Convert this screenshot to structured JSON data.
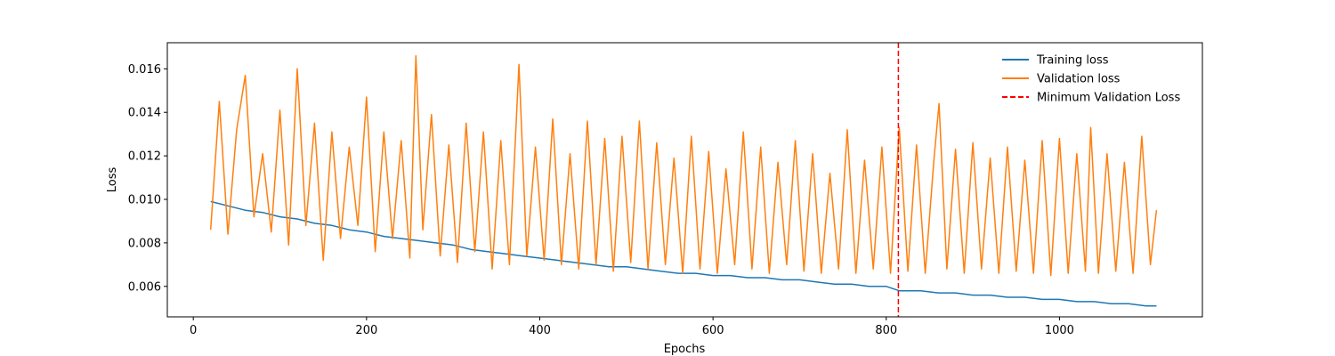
{
  "chart_data": {
    "type": "line",
    "title": "",
    "xlabel": "Epochs",
    "ylabel": "Loss",
    "xlim": [
      -30,
      1165
    ],
    "ylim": [
      0.0046,
      0.0172
    ],
    "x_ticks": [
      0,
      200,
      400,
      600,
      800,
      1000
    ],
    "y_ticks": [
      0.006,
      0.008,
      0.01,
      0.012,
      0.014,
      0.016
    ],
    "x_tick_labels": [
      "0",
      "200",
      "400",
      "600",
      "800",
      "1000"
    ],
    "y_tick_labels": [
      "0.006",
      "0.008",
      "0.010",
      "0.012",
      "0.014",
      "0.016"
    ],
    "grid": false,
    "legend_position": "top-right",
    "series": [
      {
        "name": "Training loss",
        "color": "#1f77b4",
        "x": [
          20,
          40,
          60,
          80,
          100,
          120,
          140,
          160,
          180,
          200,
          220,
          240,
          260,
          280,
          300,
          320,
          340,
          360,
          380,
          400,
          420,
          440,
          460,
          480,
          500,
          520,
          540,
          560,
          580,
          600,
          620,
          640,
          660,
          680,
          700,
          720,
          740,
          760,
          780,
          800,
          815,
          840,
          860,
          880,
          900,
          920,
          940,
          960,
          980,
          1000,
          1020,
          1040,
          1060,
          1080,
          1100,
          1112
        ],
        "y": [
          0.0099,
          0.0097,
          0.0095,
          0.0094,
          0.0092,
          0.0091,
          0.0089,
          0.0088,
          0.0086,
          0.0085,
          0.0083,
          0.0082,
          0.0081,
          0.008,
          0.0079,
          0.0077,
          0.0076,
          0.0075,
          0.0074,
          0.0073,
          0.0072,
          0.0071,
          0.007,
          0.0069,
          0.0069,
          0.0068,
          0.0067,
          0.0066,
          0.0066,
          0.0065,
          0.0065,
          0.0064,
          0.0064,
          0.0063,
          0.0063,
          0.0062,
          0.0061,
          0.0061,
          0.006,
          0.006,
          0.0058,
          0.0058,
          0.0057,
          0.0057,
          0.0056,
          0.0056,
          0.0055,
          0.0055,
          0.0054,
          0.0054,
          0.0053,
          0.0053,
          0.0052,
          0.0052,
          0.0051,
          0.0051
        ]
      },
      {
        "name": "Validation loss",
        "color": "#ff7f0e",
        "x": [
          20,
          30,
          40,
          50,
          60,
          70,
          80,
          90,
          100,
          110,
          120,
          130,
          140,
          150,
          160,
          170,
          180,
          190,
          200,
          210,
          220,
          230,
          240,
          250,
          257,
          265,
          275,
          285,
          295,
          305,
          315,
          325,
          335,
          345,
          355,
          365,
          376,
          385,
          395,
          405,
          415,
          425,
          435,
          445,
          455,
          465,
          475,
          485,
          495,
          505,
          515,
          525,
          535,
          545,
          555,
          565,
          575,
          585,
          595,
          605,
          615,
          625,
          635,
          645,
          655,
          665,
          675,
          685,
          695,
          705,
          715,
          725,
          735,
          745,
          755,
          765,
          775,
          785,
          795,
          805,
          815,
          825,
          835,
          845,
          855,
          861,
          870,
          880,
          890,
          900,
          910,
          920,
          930,
          940,
          950,
          960,
          970,
          980,
          990,
          1000,
          1010,
          1020,
          1030,
          1036,
          1045,
          1055,
          1065,
          1075,
          1085,
          1095,
          1105,
          1112
        ],
        "y": [
          0.0086,
          0.0145,
          0.0084,
          0.0132,
          0.0157,
          0.0092,
          0.0121,
          0.0085,
          0.0141,
          0.0079,
          0.016,
          0.0088,
          0.0135,
          0.0072,
          0.0131,
          0.0082,
          0.0124,
          0.0088,
          0.0147,
          0.0076,
          0.0131,
          0.0082,
          0.0127,
          0.0073,
          0.0166,
          0.0086,
          0.0139,
          0.0074,
          0.0125,
          0.0071,
          0.0135,
          0.0076,
          0.0131,
          0.0068,
          0.0127,
          0.007,
          0.0162,
          0.0074,
          0.0124,
          0.0072,
          0.0137,
          0.007,
          0.0121,
          0.0068,
          0.0136,
          0.007,
          0.0128,
          0.0067,
          0.0129,
          0.0071,
          0.0136,
          0.0068,
          0.0126,
          0.007,
          0.0119,
          0.0066,
          0.0129,
          0.0068,
          0.0122,
          0.0066,
          0.0114,
          0.007,
          0.0131,
          0.0068,
          0.0124,
          0.0066,
          0.0117,
          0.007,
          0.0127,
          0.0067,
          0.0121,
          0.0066,
          0.0112,
          0.0068,
          0.0132,
          0.0066,
          0.0118,
          0.0068,
          0.0124,
          0.0066,
          0.0133,
          0.0067,
          0.0125,
          0.0066,
          0.0118,
          0.0144,
          0.0068,
          0.0123,
          0.0066,
          0.0126,
          0.0068,
          0.0119,
          0.0066,
          0.0124,
          0.0067,
          0.0118,
          0.0066,
          0.0127,
          0.0065,
          0.0128,
          0.0066,
          0.0121,
          0.0067,
          0.0133,
          0.0066,
          0.0121,
          0.0067,
          0.0117,
          0.0066,
          0.0129,
          0.007,
          0.0095
        ]
      }
    ],
    "vline": {
      "name": "Minimum Validation Loss",
      "x": 814,
      "color": "#ff0000",
      "style": "dashed"
    }
  }
}
